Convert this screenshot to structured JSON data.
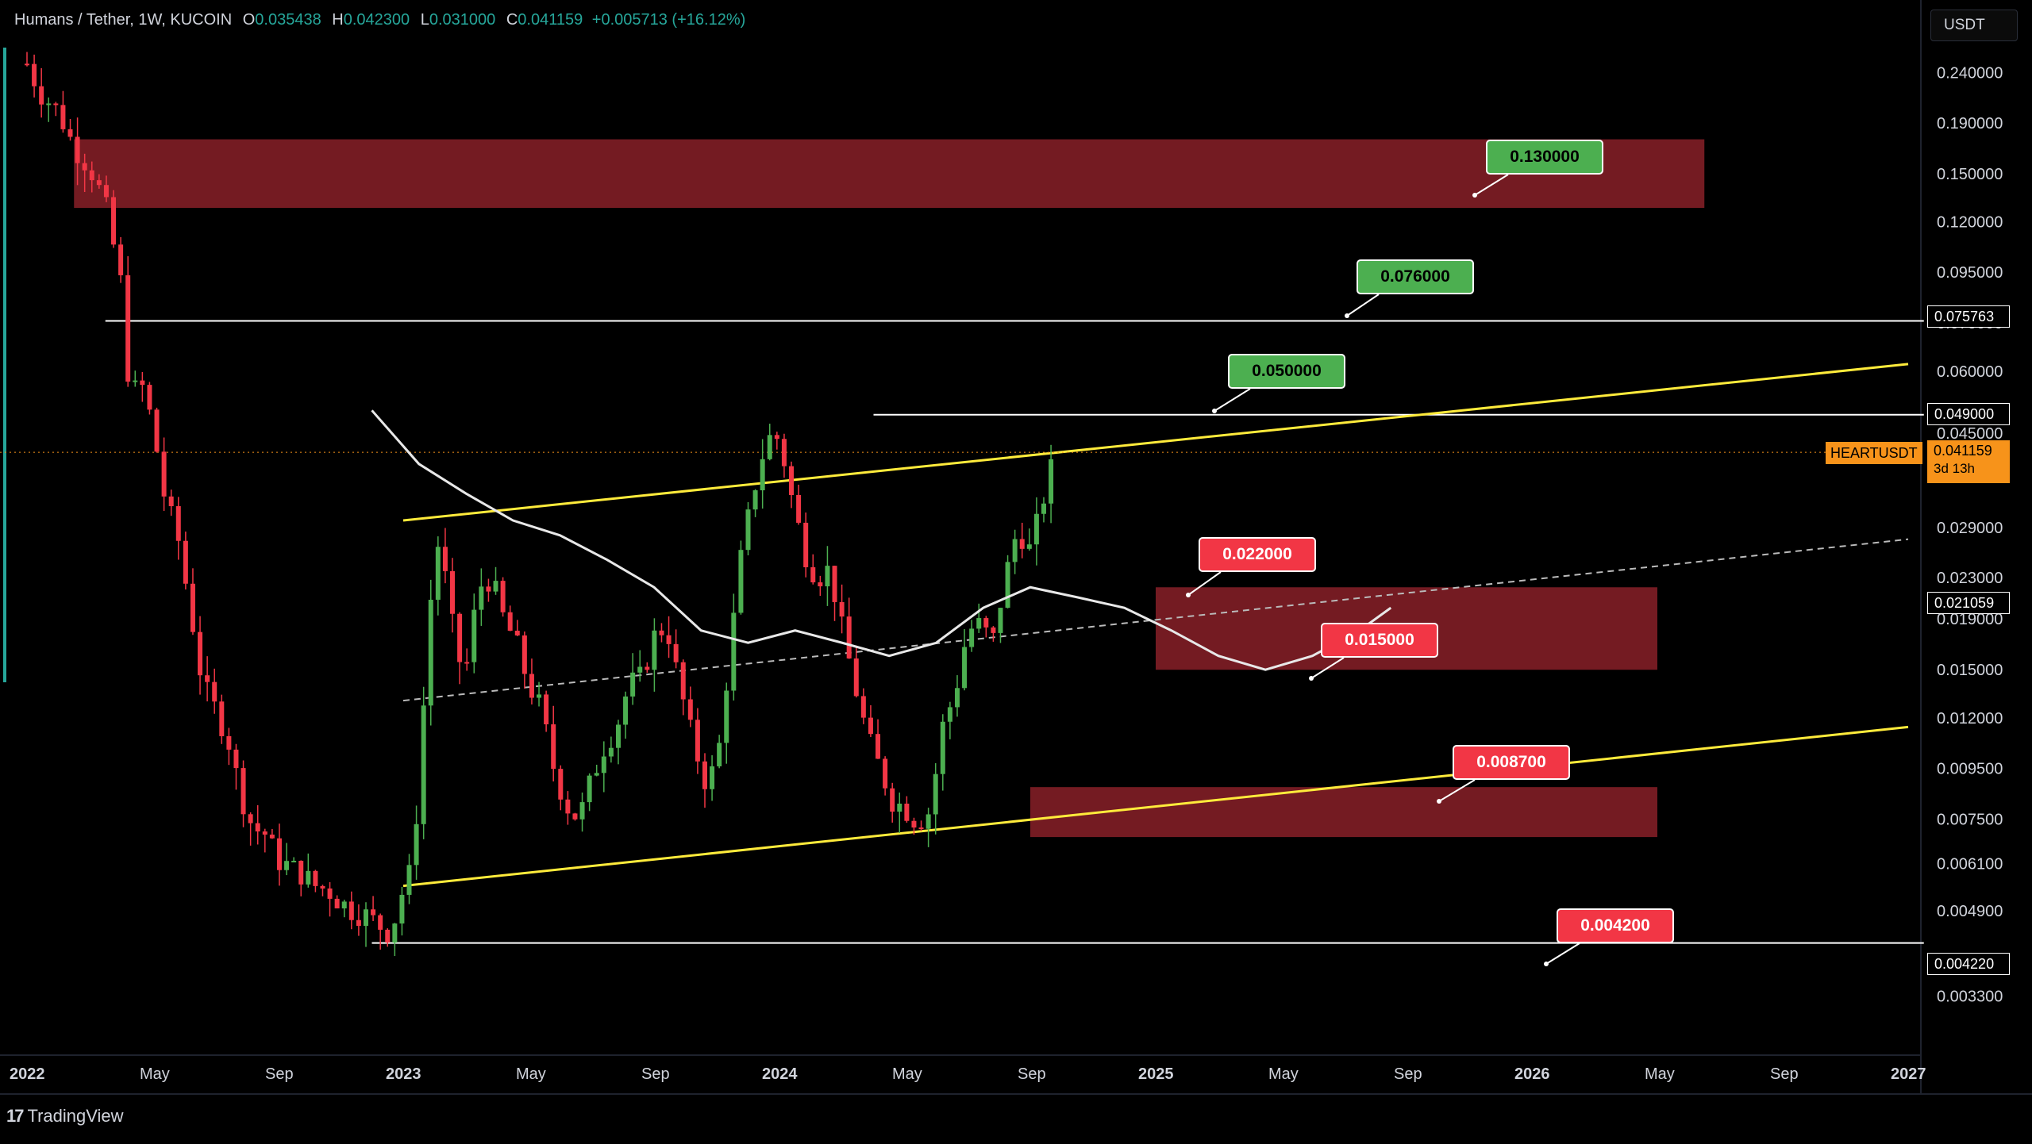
{
  "header": {
    "symbol": "Humans / Tether, 1W, KUCOIN",
    "o_label": "O",
    "o_value": "0.035438",
    "h_label": "H",
    "h_value": "0.042300",
    "l_label": "L",
    "l_value": "0.031000",
    "c_label": "C",
    "c_value": "0.041159",
    "change": "+0.005713 (+16.12%)"
  },
  "currency_button": "USDT",
  "brand": {
    "logo": "17",
    "name": "TradingView"
  },
  "symbol_tag": "HEARTUSDT",
  "price_tag": {
    "price": "0.041159",
    "countdown": "3d 13h"
  },
  "level_tags": [
    "0.075763",
    "0.049000",
    "0.021059",
    "0.004220"
  ],
  "callouts": [
    "0.130000",
    "0.076000",
    "0.050000",
    "0.022000",
    "0.015000",
    "0.008700",
    "0.004200"
  ],
  "colors": {
    "bull": "#26a69a",
    "bull_candle": "#4caf50",
    "bear": "#f23645",
    "zone": "#7a1c24",
    "channel": "#ffeb3b",
    "level": "#ffffff",
    "accent": "#f7931a"
  },
  "chart_data": {
    "type": "candlestick",
    "scale": "log",
    "ylim": [
      0.0028,
      0.29
    ],
    "y_ticks": [
      "0.240000",
      "0.190000",
      "0.150000",
      "0.120000",
      "0.095000",
      "0.075000",
      "0.060000",
      "0.045000",
      "0.029000",
      "0.023000",
      "0.019000",
      "0.015000",
      "0.012000",
      "0.009500",
      "0.007500",
      "0.006100",
      "0.004900",
      "0.003800",
      "0.003300"
    ],
    "x_ticks": [
      "2022",
      "May",
      "Sep",
      "2023",
      "May",
      "Sep",
      "2024",
      "May",
      "Sep",
      "2025",
      "May",
      "Sep",
      "2026",
      "May",
      "Sep",
      "2027"
    ],
    "x_tick_t": [
      0,
      4,
      8,
      12,
      16,
      20,
      24,
      28,
      32,
      36,
      40,
      44,
      48,
      52,
      56,
      60
    ],
    "close_path": [
      [
        0.0,
        0.25
      ],
      [
        0.4,
        0.22
      ],
      [
        1.0,
        0.2
      ],
      [
        1.5,
        0.17
      ],
      [
        2.0,
        0.155
      ],
      [
        2.5,
        0.13
      ],
      [
        3.0,
        0.09
      ],
      [
        3.3,
        0.052
      ],
      [
        3.6,
        0.058
      ],
      [
        4.0,
        0.047
      ],
      [
        4.4,
        0.033
      ],
      [
        4.8,
        0.028
      ],
      [
        5.2,
        0.02
      ],
      [
        5.6,
        0.014
      ],
      [
        6.0,
        0.0125
      ],
      [
        6.4,
        0.011
      ],
      [
        6.8,
        0.0085
      ],
      [
        7.2,
        0.0072
      ],
      [
        7.6,
        0.007
      ],
      [
        8.0,
        0.0062
      ],
      [
        8.4,
        0.006
      ],
      [
        8.8,
        0.0058
      ],
      [
        9.2,
        0.0055
      ],
      [
        9.6,
        0.0054
      ],
      [
        10.0,
        0.0051
      ],
      [
        10.4,
        0.0049
      ],
      [
        10.8,
        0.0048
      ],
      [
        11.2,
        0.0046
      ],
      [
        11.6,
        0.0044
      ],
      [
        11.9,
        0.0052
      ],
      [
        12.2,
        0.0058
      ],
      [
        12.5,
        0.0085
      ],
      [
        12.8,
        0.019
      ],
      [
        13.1,
        0.027
      ],
      [
        13.4,
        0.022
      ],
      [
        13.7,
        0.016
      ],
      [
        14.0,
        0.015
      ],
      [
        14.4,
        0.022
      ],
      [
        14.8,
        0.023
      ],
      [
        15.2,
        0.019
      ],
      [
        15.6,
        0.017
      ],
      [
        16.0,
        0.014
      ],
      [
        16.4,
        0.0125
      ],
      [
        16.8,
        0.0095
      ],
      [
        17.2,
        0.008
      ],
      [
        17.6,
        0.0075
      ],
      [
        18.0,
        0.009
      ],
      [
        18.4,
        0.0105
      ],
      [
        18.8,
        0.0115
      ],
      [
        19.2,
        0.014
      ],
      [
        19.6,
        0.0145
      ],
      [
        20.0,
        0.0175
      ],
      [
        20.4,
        0.0185
      ],
      [
        20.8,
        0.014
      ],
      [
        21.2,
        0.011
      ],
      [
        21.6,
        0.009
      ],
      [
        22.0,
        0.0095
      ],
      [
        22.4,
        0.016
      ],
      [
        22.8,
        0.026
      ],
      [
        23.2,
        0.035
      ],
      [
        23.6,
        0.044
      ],
      [
        24.0,
        0.044
      ],
      [
        24.4,
        0.033
      ],
      [
        24.8,
        0.026
      ],
      [
        25.2,
        0.023
      ],
      [
        25.6,
        0.024
      ],
      [
        26.0,
        0.018
      ],
      [
        26.4,
        0.014
      ],
      [
        26.8,
        0.011
      ],
      [
        27.2,
        0.0095
      ],
      [
        27.6,
        0.0082
      ],
      [
        28.0,
        0.0079
      ],
      [
        28.4,
        0.0074
      ],
      [
        28.8,
        0.0078
      ],
      [
        29.2,
        0.0115
      ],
      [
        29.6,
        0.0135
      ],
      [
        30.0,
        0.018
      ],
      [
        30.4,
        0.0185
      ],
      [
        30.8,
        0.017
      ],
      [
        31.2,
        0.023
      ],
      [
        31.6,
        0.029
      ],
      [
        32.0,
        0.026
      ],
      [
        32.4,
        0.033
      ],
      [
        32.8,
        0.041
      ]
    ],
    "moving_average": [
      [
        0.0,
        0.05
      ],
      [
        1.5,
        0.039
      ],
      [
        3.0,
        0.034
      ],
      [
        4.5,
        0.03
      ],
      [
        6.0,
        0.028
      ],
      [
        7.5,
        0.025
      ],
      [
        9.0,
        0.022
      ],
      [
        10.5,
        0.018
      ],
      [
        12.0,
        0.017
      ],
      [
        13.5,
        0.018
      ],
      [
        15.0,
        0.017
      ],
      [
        16.5,
        0.016
      ],
      [
        18.0,
        0.017
      ],
      [
        19.5,
        0.02
      ],
      [
        21.0,
        0.022
      ],
      [
        22.5,
        0.021
      ],
      [
        24.0,
        0.02
      ],
      [
        25.5,
        0.018
      ],
      [
        27.0,
        0.016
      ],
      [
        28.5,
        0.015
      ],
      [
        30.0,
        0.016
      ],
      [
        31.5,
        0.018
      ],
      [
        32.5,
        0.02
      ]
    ],
    "ma_t_start": 11,
    "channel_upper": [
      [
        12.0,
        0.03
      ],
      [
        60.0,
        0.062
      ]
    ],
    "channel_lower": [
      [
        12.0,
        0.0055
      ],
      [
        60.0,
        0.0115
      ]
    ],
    "midline": [
      [
        12.0,
        0.013
      ],
      [
        60.0,
        0.0275
      ]
    ],
    "zones": [
      {
        "t0": 1.5,
        "t1": 53.5,
        "top": 0.176,
        "bottom": 0.128
      },
      {
        "t0": 36.0,
        "t1": 52.0,
        "top": 0.022,
        "bottom": 0.015
      },
      {
        "t0": 32.0,
        "t1": 52.0,
        "top": 0.0087,
        "bottom": 0.0069
      }
    ],
    "levels": [
      {
        "t0": 2.5,
        "t1": 60.5,
        "y": 0.075763
      },
      {
        "t0": 27.0,
        "t1": 60.5,
        "y": 0.049
      },
      {
        "t0": 11.0,
        "t1": 60.5,
        "y": 0.00422
      }
    ]
  }
}
